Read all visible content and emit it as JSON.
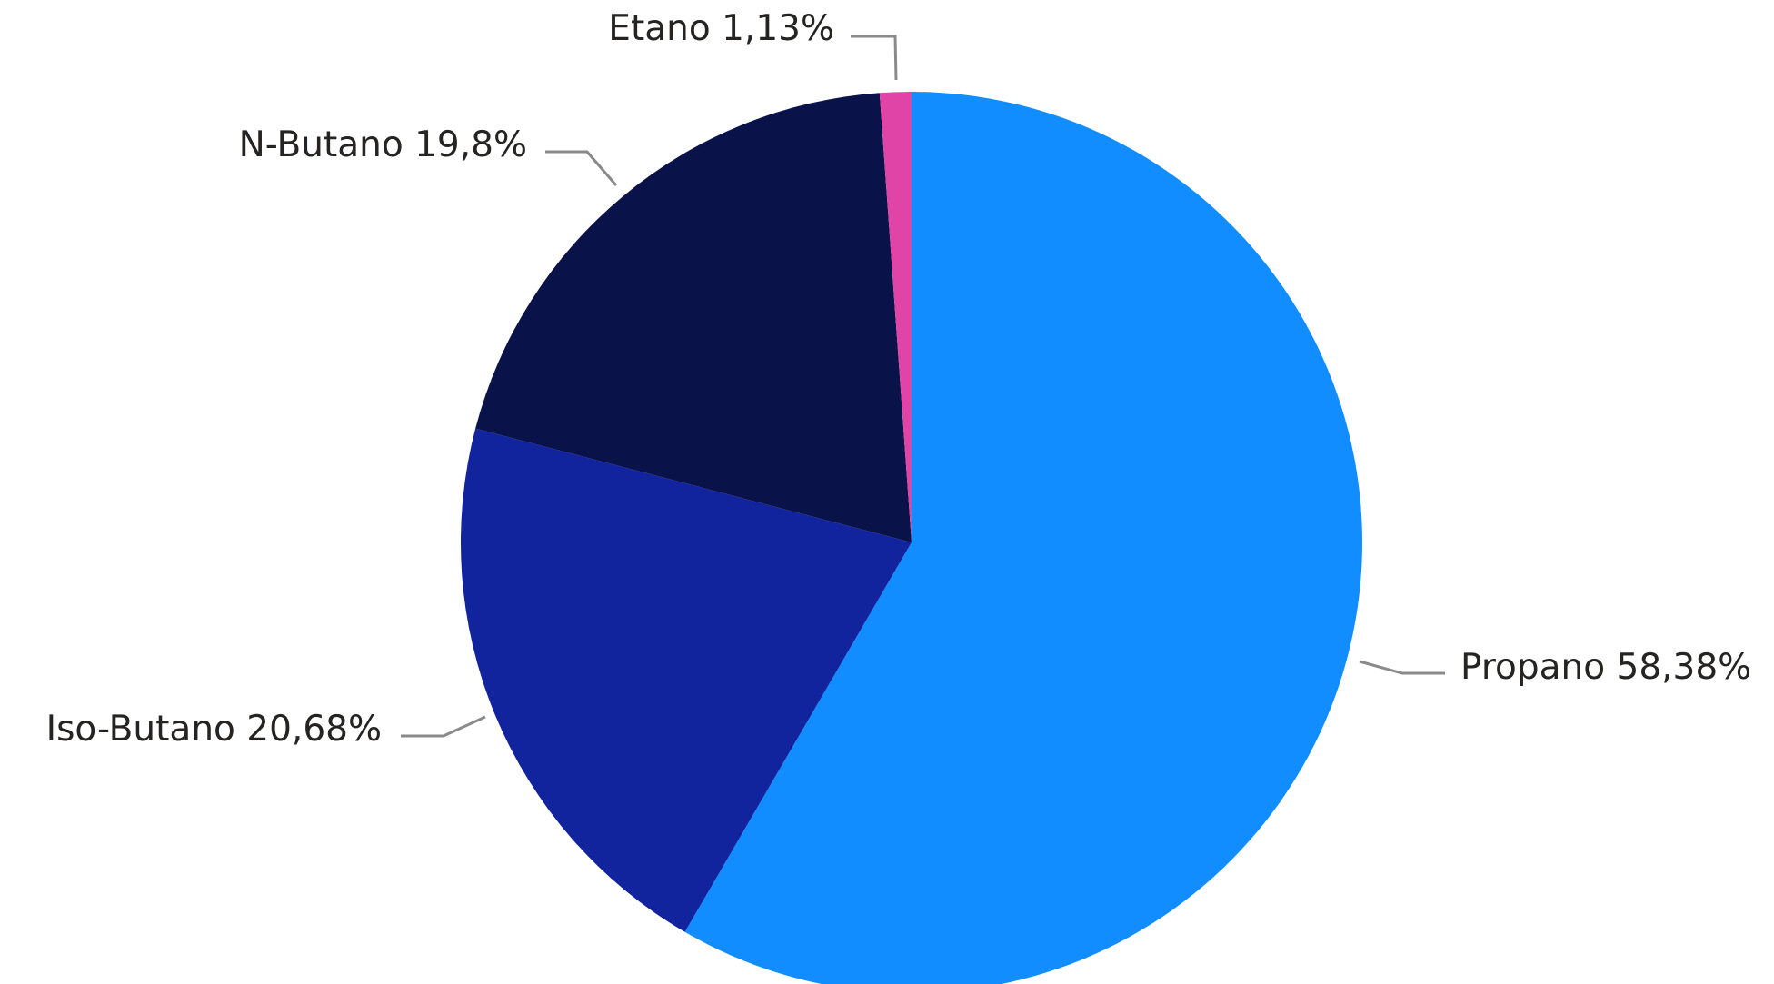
{
  "chart_data": {
    "type": "pie",
    "legend": "none",
    "slices": [
      {
        "name": "Propano",
        "value": 58.38,
        "label": "Propano 58,38%",
        "color": "#118DFF"
      },
      {
        "name": "Iso-Butano",
        "value": 20.68,
        "label": "Iso-Butano 20,68%",
        "color": "#12239E"
      },
      {
        "name": "N-Butano",
        "value": 19.8,
        "label": "N-Butano 19,8%",
        "color": "#0A124A"
      },
      {
        "name": "Etano",
        "value": 1.13,
        "label": "Etano 1,13%",
        "color": "#E044A7"
      }
    ]
  }
}
